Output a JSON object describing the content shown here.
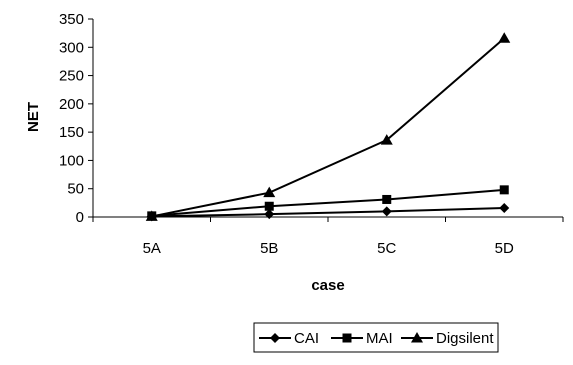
{
  "chart_data": {
    "type": "line",
    "title": "",
    "xlabel": "case",
    "ylabel": "NET",
    "categories": [
      "5A",
      "5B",
      "5C",
      "5D"
    ],
    "ylim": [
      0,
      350
    ],
    "yticks": [
      "0",
      "50",
      "100",
      "150",
      "200",
      "250",
      "300",
      "350"
    ],
    "grid": false,
    "legend_position": "bottom",
    "series": [
      {
        "name": "CAI",
        "marker": "diamond",
        "color": "#000000",
        "values": [
          1,
          5,
          10,
          16
        ]
      },
      {
        "name": "MAI",
        "marker": "square",
        "color": "#000000",
        "values": [
          2,
          19,
          31,
          48
        ]
      },
      {
        "name": "Digsilent",
        "marker": "triangle",
        "color": "#000000",
        "values": [
          1,
          43,
          136,
          316
        ]
      }
    ]
  }
}
